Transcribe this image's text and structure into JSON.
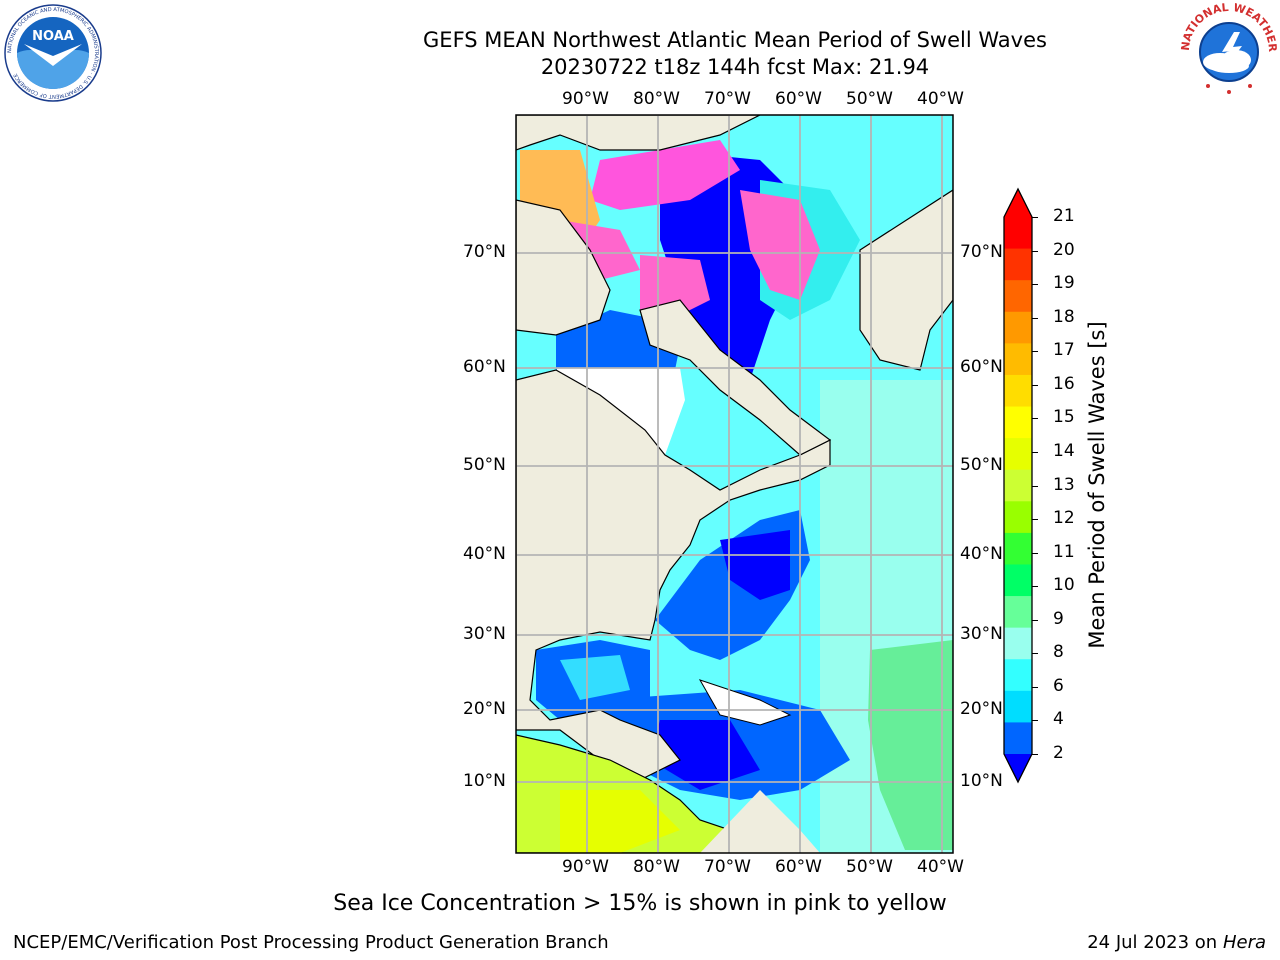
{
  "title": {
    "line1": "GEFS MEAN Northwest Atlantic Mean Period of Swell Waves",
    "line2": "20230722 t18z 144h fcst   Max: 21.94"
  },
  "map": {
    "lon_labels": [
      "90°W",
      "80°W",
      "70°W",
      "60°W",
      "50°W",
      "40°W"
    ],
    "lat_labels": [
      "70°N",
      "60°N",
      "50°N",
      "40°N",
      "30°N",
      "20°N",
      "10°N"
    ],
    "colors": {
      "land": "#efedde",
      "grid": "#b4b4b4",
      "coast": "#000000"
    }
  },
  "colorbar": {
    "label": "Mean Period of Swell Waves [s]",
    "ticks": [
      "21",
      "20",
      "19",
      "18",
      "17",
      "16",
      "15",
      "14",
      "13",
      "12",
      "11",
      "10",
      "9",
      "8",
      "6",
      "4",
      "2"
    ],
    "colors": [
      "#ff0000",
      "#ff3300",
      "#ff6600",
      "#ff9900",
      "#ffbb00",
      "#ffdd00",
      "#ffff00",
      "#e6ff00",
      "#ccff33",
      "#99ff00",
      "#33ff33",
      "#00ff66",
      "#66ff99",
      "#99ffee",
      "#33ffff",
      "#00ddff",
      "#0066ff"
    ],
    "under_color": "#0000ff",
    "over_color": "#ff0000"
  },
  "logos": {
    "noaa": {
      "text": "NOAA",
      "ring": "NATIONAL OCEANIC AND ATMOSPHERIC ADMINISTRATION · U.S. DEPARTMENT OF COMMERCE"
    },
    "nws": {
      "ring": "NATIONAL WEATHER SERVICE"
    }
  },
  "note": "Sea Ice Concentration > 15% is shown in pink to yellow",
  "footer": {
    "left": "NCEP/EMC/Verification Post Processing Product Generation Branch",
    "date": "24 Jul 2023 on ",
    "machine": "Hera"
  }
}
